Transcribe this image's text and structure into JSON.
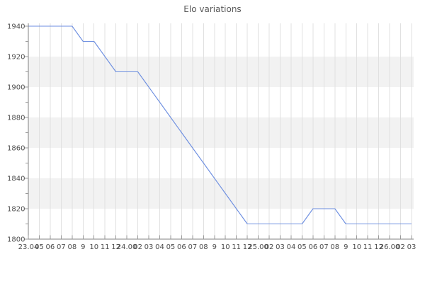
{
  "title": "Elo variations",
  "chart_data": {
    "type": "line",
    "title": "Elo variations",
    "x_labels": [
      "23.04",
      "05",
      "06",
      "07",
      "08",
      "9",
      "10",
      "11",
      "12",
      "24.00",
      "02",
      "03",
      "04",
      "05",
      "06",
      "07",
      "08",
      "9",
      "10",
      "11",
      "12",
      "25.00",
      "02",
      "03",
      "04",
      "05",
      "06",
      "07",
      "08",
      "9",
      "10",
      "11",
      "12",
      "26.00",
      "02",
      "03"
    ],
    "values": [
      1940,
      1940,
      1940,
      1940,
      1940,
      1930,
      1930,
      1920,
      1910,
      1910,
      1910,
      1900,
      1890,
      1880,
      1870,
      1860,
      1850,
      1840,
      1830,
      1820,
      1810,
      1810,
      1810,
      1810,
      1810,
      1810,
      1820,
      1820,
      1820,
      1810,
      1810,
      1810,
      1810,
      1810,
      1810,
      1810
    ],
    "y_ticks": [
      1800,
      1820,
      1840,
      1860,
      1880,
      1900,
      1920,
      1940
    ],
    "ylim": [
      1800,
      1940
    ],
    "grid": "on",
    "legend": "none",
    "colors": {
      "line": "#6c8ee0",
      "band": "#f2f2f2",
      "vgrid": "#e0e0e0",
      "spine": "#808080",
      "tick_mark": "#999999",
      "tick_label": "#4d4d4d",
      "title": "#595959",
      "background": "#ffffff"
    }
  }
}
